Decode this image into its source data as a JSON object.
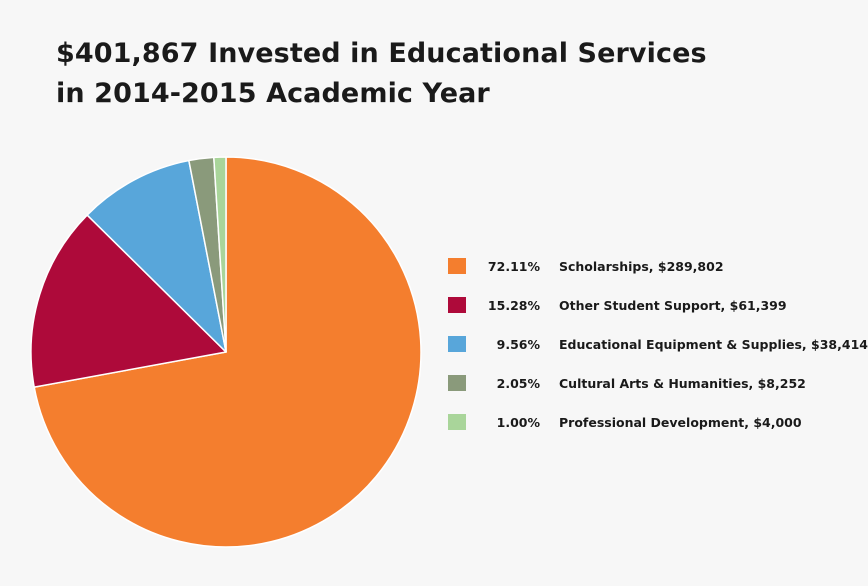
{
  "title_lines": [
    "$401,867 Invested in Educational Services",
    "in 2014-2015 Academic Year"
  ],
  "chart_data": {
    "type": "pie",
    "title": "$401,867 Invested in Educational Services in 2014-2015 Academic Year",
    "start": "12 o'clock",
    "direction": "clockwise",
    "legend_position": "right",
    "slices": [
      {
        "pct_label": "72.11%",
        "label": "Scholarships, $289,802",
        "value": 289802,
        "percent": 72.11,
        "color": "#f47e2e"
      },
      {
        "pct_label": "15.28%",
        "label": "Other Student Support, $61,399",
        "value": 61399,
        "percent": 15.28,
        "color": "#ae0a3a"
      },
      {
        "pct_label": "9.56%",
        "label": "Educational Equipment & Supplies, $38,414",
        "value": 38414,
        "percent": 9.56,
        "color": "#58a6da"
      },
      {
        "pct_label": "2.05%",
        "label": "Cultural Arts & Humanities, $8,252",
        "value": 8252,
        "percent": 2.05,
        "color": "#8a9a7b"
      },
      {
        "pct_label": "1.00%",
        "label": "Professional Development, $4,000",
        "value": 4000,
        "percent": 1.0,
        "color": "#a9d59a"
      }
    ]
  }
}
